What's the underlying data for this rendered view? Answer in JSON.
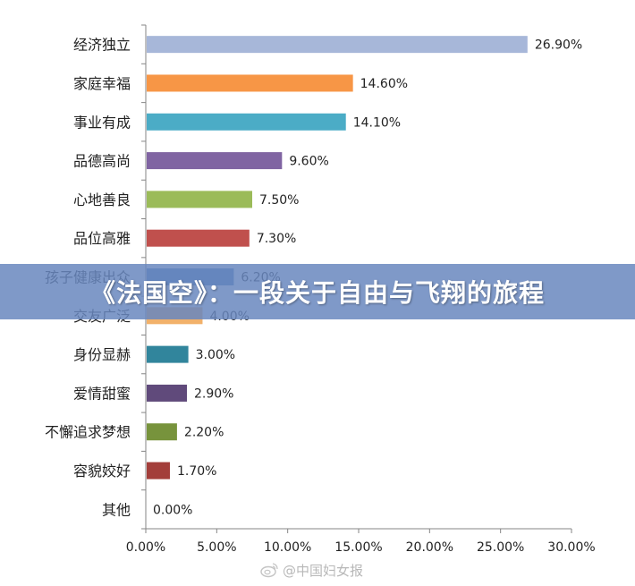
{
  "chart_data": {
    "type": "bar",
    "orientation": "horizontal",
    "categories": [
      "经济独立",
      "家庭幸福",
      "事业有成",
      "品德高尚",
      "心地善良",
      "品位高雅",
      "孩子健康出众",
      "交友广泛",
      "身份显赫",
      "爱情甜蜜",
      "不懈追求梦想",
      "容貌姣好",
      "其他"
    ],
    "values": [
      26.9,
      14.6,
      14.1,
      9.6,
      7.5,
      7.3,
      6.2,
      4.0,
      3.0,
      2.9,
      2.2,
      1.7,
      0.0
    ],
    "data_labels": [
      "26.90%",
      "14.60%",
      "14.10%",
      "9.60%",
      "7.50%",
      "7.30%",
      "6.20%",
      "4.00%",
      "3.00%",
      "2.90%",
      "2.20%",
      "1.70%",
      "0.00%"
    ],
    "bar_colors": [
      "#A7B7D9",
      "#F79646",
      "#4BACC6",
      "#8064A2",
      "#9BBB59",
      "#C0504D",
      "#4F81BD",
      "#F2B16A",
      "#31859C",
      "#604A7B",
      "#77933C",
      "#A33E3A",
      "#4F81BD"
    ],
    "xlim": [
      0,
      30
    ],
    "x_ticks": [
      "0.00%",
      "5.00%",
      "10.00%",
      "15.00%",
      "20.00%",
      "25.00%",
      "30.00%"
    ],
    "grid": false
  },
  "overlay": {
    "banner_text": "《法国空》：一段关于自由与飞翔的旅程",
    "banner_color": "#6987BE"
  },
  "watermark": {
    "text": "@中国妇女报",
    "icon": "weibo-icon"
  }
}
